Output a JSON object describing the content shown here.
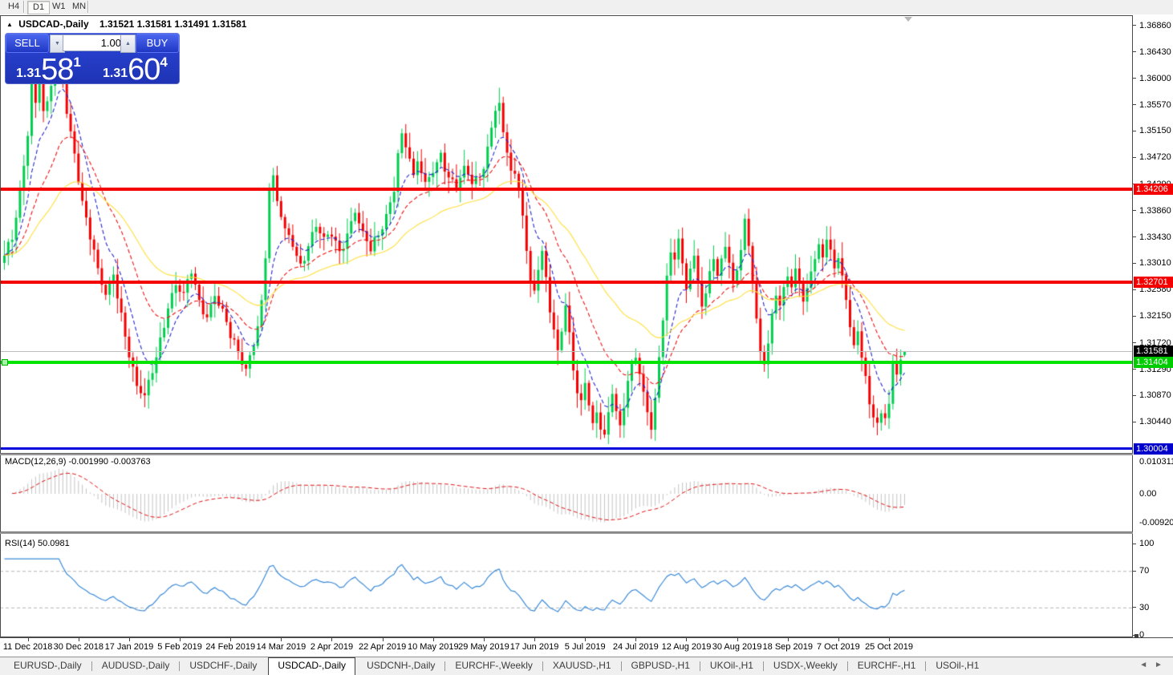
{
  "toolbar": {
    "buttons": [
      "H4",
      "D1",
      "W1",
      "MN"
    ],
    "active": "D1"
  },
  "chart_header": {
    "collapse_icon": "▲",
    "symbol": "USDCAD-,Daily",
    "ohlc_values": "1.31521 1.31581 1.31491 1.31581"
  },
  "trade_panel": {
    "sell_label": "SELL",
    "buy_label": "BUY",
    "volume": "1.00",
    "spin_down_icon": "▼",
    "spin_up_icon": "▲",
    "sell_price_small": "1.31",
    "sell_price_big": "58",
    "sell_price_sup": "1",
    "buy_price_small": "1.31",
    "buy_price_big": "60",
    "buy_price_sup": "4"
  },
  "price_axis": {
    "ticks": [
      "1.36860",
      "1.36430",
      "1.36000",
      "1.35570",
      "1.35150",
      "1.34720",
      "1.34290",
      "1.33860",
      "1.33430",
      "1.33010",
      "1.32580",
      "1.32150",
      "1.31720",
      "1.31290",
      "1.30870",
      "1.30440"
    ],
    "badges": [
      {
        "text": "1.34206",
        "price": 1.34206,
        "bg": "#f40000"
      },
      {
        "text": "1.32701",
        "price": 1.32701,
        "bg": "#f40000"
      },
      {
        "text": "1.31581",
        "price": 1.31581,
        "bg": "#000000"
      },
      {
        "text": "1.31404",
        "price": 1.31404,
        "bg": "#00cc00"
      },
      {
        "text": "1.30004",
        "price": 1.30004,
        "bg": "#0000cc"
      }
    ]
  },
  "indicators": {
    "macd_label": "MACD(12,26,9) -0.001990 -0.003763",
    "macd_ticks": [
      {
        "label": "0.010311",
        "value": 0.010311
      },
      {
        "label": "0.00",
        "value": 0.0
      },
      {
        "label": "-0.009203",
        "value": -0.009203
      }
    ],
    "rsi_label": "RSI(14) 50.0981",
    "rsi_ticks": [
      {
        "label": "100",
        "value": 100
      },
      {
        "label": "70",
        "value": 70
      },
      {
        "label": "30",
        "value": 30
      },
      {
        "label": "0",
        "value": 0
      }
    ]
  },
  "date_axis": {
    "labels": [
      "11 Dec 2018",
      "30 Dec 2018",
      "17 Jan 2019",
      "5 Feb 2019",
      "24 Feb 2019",
      "14 Mar 2019",
      "2 Apr 2019",
      "22 Apr 2019",
      "10 May 2019",
      "29 May 2019",
      "17 Jun 2019",
      "5 Jul 2019",
      "24 Jul 2019",
      "12 Aug 2019",
      "30 Aug 2019",
      "18 Sep 2019",
      "7 Oct 2019",
      "25 Oct 2019"
    ],
    "first_index": 6,
    "index_step": 13
  },
  "tabs": {
    "items": [
      "EURUSD-,Daily",
      "AUDUSD-,Daily",
      "USDCHF-,Daily",
      "USDCAD-,Daily",
      "USDCNH-,Daily",
      "EURCHF-,Weekly",
      "XAUUSD-,H1",
      "GBPUSD-,H1",
      "UKOil-,H1",
      "USDX-,Weekly",
      "EURCHF-,H1",
      "USOil-,H1"
    ],
    "active_index": 3,
    "scroll_left_icon": "◄",
    "scroll_right_icon": "►"
  },
  "chart_data": {
    "type": "candlestick",
    "symbol": "USDCAD",
    "timeframe": "Daily",
    "bars": 232,
    "current_bar": {
      "open": 1.31521,
      "high": 1.31581,
      "low": 1.31491,
      "close": 1.31581
    },
    "price_range": {
      "max": 1.3701,
      "min": 1.29937
    },
    "close_anchors": [
      [
        0,
        1.3312
      ],
      [
        2,
        1.334
      ],
      [
        4,
        1.342
      ],
      [
        6,
        1.351
      ],
      [
        7,
        1.3595
      ],
      [
        8,
        1.356
      ],
      [
        9,
        1.36
      ],
      [
        10,
        1.3545
      ],
      [
        11,
        1.356
      ],
      [
        13,
        1.362
      ],
      [
        14,
        1.3655
      ],
      [
        15,
        1.36
      ],
      [
        16,
        1.3545
      ],
      [
        18,
        1.348
      ],
      [
        20,
        1.34
      ],
      [
        22,
        1.334
      ],
      [
        24,
        1.329
      ],
      [
        26,
        1.325
      ],
      [
        28,
        1.3285
      ],
      [
        30,
        1.322
      ],
      [
        32,
        1.315
      ],
      [
        34,
        1.31
      ],
      [
        36,
        1.3085
      ],
      [
        38,
        1.3125
      ],
      [
        40,
        1.318
      ],
      [
        42,
        1.323
      ],
      [
        44,
        1.3265
      ],
      [
        46,
        1.325
      ],
      [
        48,
        1.3285
      ],
      [
        50,
        1.324
      ],
      [
        52,
        1.3215
      ],
      [
        54,
        1.325
      ],
      [
        56,
        1.3225
      ],
      [
        58,
        1.318
      ],
      [
        60,
        1.3155
      ],
      [
        62,
        1.313
      ],
      [
        64,
        1.317
      ],
      [
        66,
        1.324
      ],
      [
        67,
        1.331
      ],
      [
        68,
        1.342
      ],
      [
        69,
        1.344
      ],
      [
        70,
        1.34
      ],
      [
        72,
        1.3355
      ],
      [
        74,
        1.333
      ],
      [
        76,
        1.33
      ],
      [
        78,
        1.333
      ],
      [
        80,
        1.336
      ],
      [
        82,
        1.334
      ],
      [
        84,
        1.3345
      ],
      [
        86,
        1.332
      ],
      [
        88,
        1.335
      ],
      [
        90,
        1.3385
      ],
      [
        92,
        1.335
      ],
      [
        94,
        1.332
      ],
      [
        96,
        1.3345
      ],
      [
        98,
        1.338
      ],
      [
        100,
        1.342
      ],
      [
        101,
        1.348
      ],
      [
        102,
        1.351
      ],
      [
        103,
        1.349
      ],
      [
        104,
        1.347
      ],
      [
        105,
        1.344
      ],
      [
        106,
        1.3465
      ],
      [
        108,
        1.343
      ],
      [
        110,
        1.345
      ],
      [
        112,
        1.348
      ],
      [
        114,
        1.344
      ],
      [
        116,
        1.342
      ],
      [
        118,
        1.3455
      ],
      [
        120,
        1.343
      ],
      [
        122,
        1.344
      ],
      [
        124,
        1.349
      ],
      [
        125,
        1.352
      ],
      [
        126,
        1.355
      ],
      [
        127,
        1.356
      ],
      [
        128,
        1.351
      ],
      [
        130,
        1.345
      ],
      [
        132,
        1.342
      ],
      [
        133,
        1.338
      ],
      [
        134,
        1.332
      ],
      [
        135,
        1.327
      ],
      [
        136,
        1.326
      ],
      [
        137,
        1.329
      ],
      [
        138,
        1.332
      ],
      [
        139,
        1.328
      ],
      [
        140,
        1.322
      ],
      [
        141,
        1.319
      ],
      [
        142,
        1.316
      ],
      [
        143,
        1.319
      ],
      [
        144,
        1.323
      ],
      [
        145,
        1.319
      ],
      [
        146,
        1.313
      ],
      [
        147,
        1.309
      ],
      [
        148,
        1.308
      ],
      [
        149,
        1.311
      ],
      [
        150,
        1.307
      ],
      [
        151,
        1.304
      ],
      [
        152,
        1.306
      ],
      [
        153,
        1.303
      ],
      [
        154,
        1.302
      ],
      [
        155,
        1.306
      ],
      [
        156,
        1.309
      ],
      [
        157,
        1.306
      ],
      [
        158,
        1.304
      ],
      [
        159,
        1.307
      ],
      [
        160,
        1.311
      ],
      [
        161,
        1.314
      ],
      [
        162,
        1.315
      ],
      [
        163,
        1.312
      ],
      [
        164,
        1.309
      ],
      [
        165,
        1.306
      ],
      [
        166,
        1.303
      ],
      [
        167,
        1.308
      ],
      [
        168,
        1.315
      ],
      [
        169,
        1.321
      ],
      [
        170,
        1.328
      ],
      [
        171,
        1.332
      ],
      [
        172,
        1.331
      ],
      [
        173,
        1.334
      ],
      [
        174,
        1.33
      ],
      [
        175,
        1.326
      ],
      [
        176,
        1.329
      ],
      [
        177,
        1.331
      ],
      [
        178,
        1.327
      ],
      [
        179,
        1.323
      ],
      [
        180,
        1.325
      ],
      [
        181,
        1.329
      ],
      [
        182,
        1.331
      ],
      [
        183,
        1.328
      ],
      [
        184,
        1.331
      ],
      [
        185,
        1.333
      ],
      [
        186,
        1.33
      ],
      [
        187,
        1.327
      ],
      [
        188,
        1.329
      ],
      [
        189,
        1.332
      ],
      [
        190,
        1.337
      ],
      [
        191,
        1.333
      ],
      [
        192,
        1.327
      ],
      [
        193,
        1.321
      ],
      [
        194,
        1.316
      ],
      [
        195,
        1.314
      ],
      [
        196,
        1.317
      ],
      [
        197,
        1.322
      ],
      [
        198,
        1.325
      ],
      [
        199,
        1.323
      ],
      [
        200,
        1.326
      ],
      [
        201,
        1.328
      ],
      [
        202,
        1.326
      ],
      [
        203,
        1.329
      ],
      [
        204,
        1.327
      ],
      [
        205,
        1.324
      ],
      [
        206,
        1.326
      ],
      [
        207,
        1.329
      ],
      [
        208,
        1.331
      ],
      [
        209,
        1.333
      ],
      [
        210,
        1.331
      ],
      [
        211,
        1.334
      ],
      [
        212,
        1.332
      ],
      [
        213,
        1.329
      ],
      [
        214,
        1.331
      ],
      [
        215,
        1.328
      ],
      [
        216,
        1.324
      ],
      [
        217,
        1.32
      ],
      [
        218,
        1.317
      ],
      [
        219,
        1.319
      ],
      [
        220,
        1.315
      ],
      [
        221,
        1.312
      ],
      [
        222,
        1.307
      ],
      [
        223,
        1.305
      ],
      [
        224,
        1.3043
      ],
      [
        225,
        1.3055
      ],
      [
        226,
        1.3048
      ],
      [
        227,
        1.3075
      ],
      [
        228,
        1.314
      ],
      [
        229,
        1.312
      ],
      [
        230,
        1.3148
      ],
      [
        231,
        1.31581
      ]
    ],
    "levels": [
      {
        "price": 1.34206,
        "color": "#f40000",
        "thickness": 4,
        "kind": "horizontal-line"
      },
      {
        "price": 1.32701,
        "color": "#f40000",
        "thickness": 4,
        "kind": "horizontal-line"
      },
      {
        "price": 1.31581,
        "color": "#bcbcbc",
        "thickness": 1,
        "kind": "current-price-line"
      },
      {
        "price": 1.31404,
        "color": "#00e400",
        "thickness": 4,
        "kind": "horizontal-line",
        "handle": true
      },
      {
        "price": 1.30004,
        "color": "#0000dc",
        "thickness": 3,
        "kind": "horizontal-line"
      }
    ],
    "moving_averages": [
      {
        "period": 8,
        "color": "#2424cc",
        "style": "dashed"
      },
      {
        "period": 20,
        "color": "#ee1212",
        "style": "dashed"
      },
      {
        "period": 45,
        "color": "#ffde3a",
        "style": "solid"
      }
    ],
    "macd": {
      "fast": 12,
      "slow": 26,
      "signal": 9,
      "histogram_color": "#c4c4c4",
      "signal_color": "#e01010",
      "current": -0.00199,
      "current_signal": -0.003763
    },
    "rsi": {
      "period": 14,
      "color": "#3c8bd9",
      "levels": [
        70,
        30
      ],
      "current": 50.0981
    },
    "candle_colors": {
      "bull": "#00ce4f",
      "bear": "#f40000"
    }
  }
}
